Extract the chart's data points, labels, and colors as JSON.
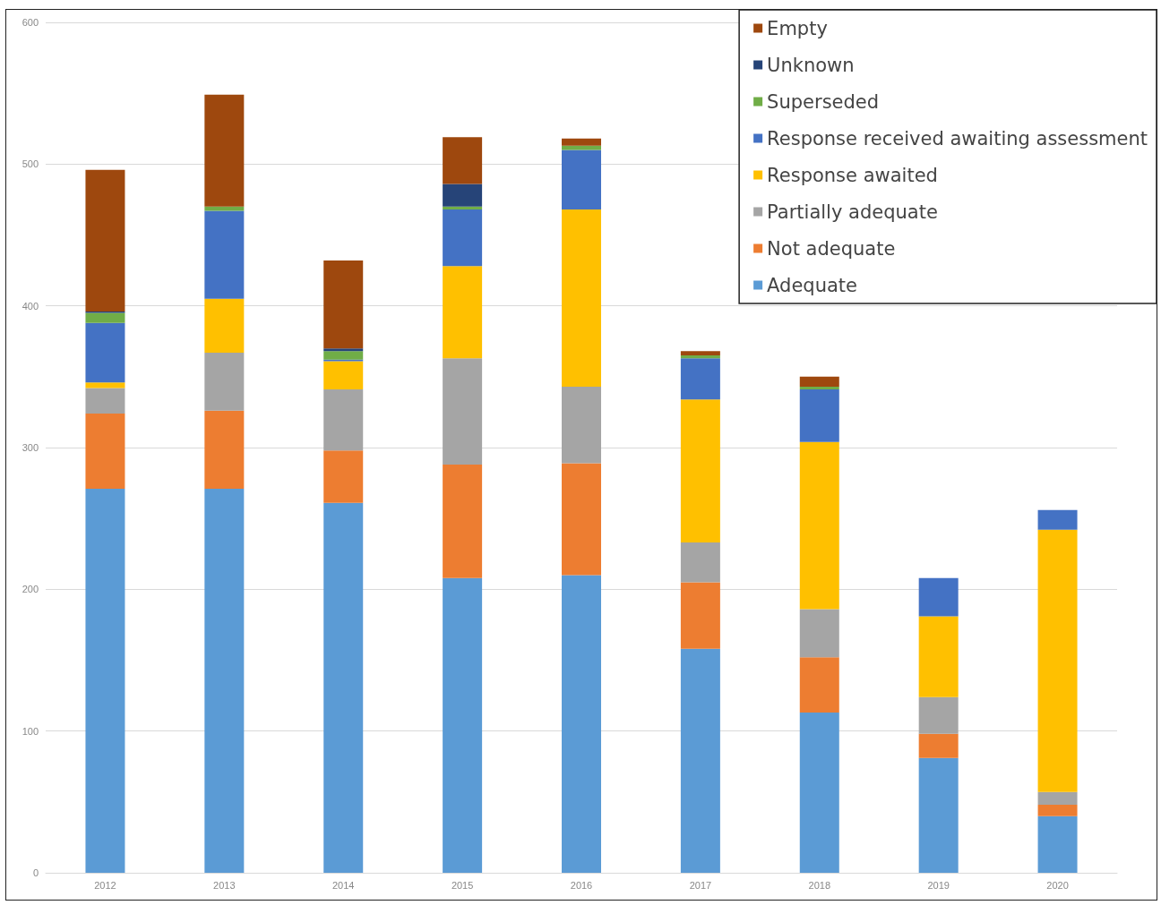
{
  "chart_data": {
    "type": "bar",
    "stacked": true,
    "categories": [
      "2012",
      "2013",
      "2014",
      "2015",
      "2016",
      "2017",
      "2018",
      "2019",
      "2020"
    ],
    "series": [
      {
        "name": "Adequate",
        "color": "#5b9bd5",
        "values": [
          271,
          271,
          261,
          208,
          210,
          158,
          113,
          81,
          40
        ]
      },
      {
        "name": "Not adequate",
        "color": "#ed7d31",
        "values": [
          53,
          55,
          37,
          80,
          79,
          47,
          39,
          17,
          8
        ]
      },
      {
        "name": "Partially adequate",
        "color": "#a5a5a5",
        "values": [
          18,
          41,
          43,
          75,
          54,
          28,
          34,
          26,
          9
        ]
      },
      {
        "name": "Response awaited",
        "color": "#ffc000",
        "values": [
          4,
          38,
          20,
          65,
          125,
          101,
          118,
          57,
          185
        ]
      },
      {
        "name": "Response received awaiting assessment",
        "color": "#4472c4",
        "values": [
          42,
          62,
          1,
          40,
          42,
          29,
          37,
          27,
          14
        ]
      },
      {
        "name": "Superseded",
        "color": "#70ad47",
        "values": [
          7,
          3,
          6,
          2,
          3,
          2,
          2,
          0,
          0
        ]
      },
      {
        "name": "Unknown",
        "color": "#264478",
        "values": [
          1,
          0,
          2,
          16,
          0,
          0,
          0,
          0,
          0
        ]
      },
      {
        "name": "Empty",
        "color": "#9e480e",
        "values": [
          100,
          79,
          62,
          33,
          5,
          3,
          7,
          0,
          0
        ]
      }
    ],
    "ylim": [
      0,
      600
    ],
    "yticks": [
      0,
      100,
      200,
      300,
      400,
      500,
      600
    ],
    "grid": "y",
    "legend": "top right"
  }
}
